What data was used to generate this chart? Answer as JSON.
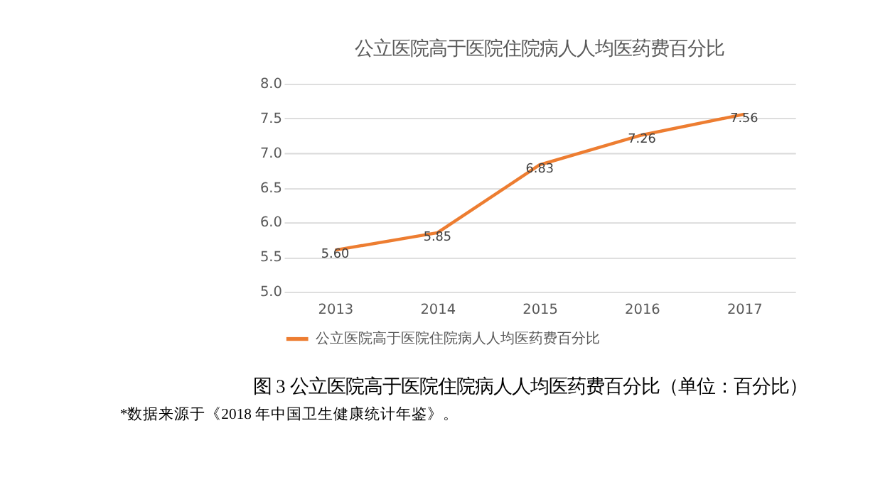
{
  "chart_data": {
    "type": "line",
    "title": "公立医院高于医院住院病人人均医药费百分比",
    "categories": [
      "2013",
      "2014",
      "2015",
      "2016",
      "2017"
    ],
    "series": [
      {
        "name": "公立医院高于医院住院病人人均医药费百分比",
        "color": "#ed7d31",
        "values": [
          5.6,
          5.85,
          6.83,
          7.26,
          7.56
        ]
      }
    ],
    "value_labels": [
      "5.60",
      "5.85",
      "6.83",
      "7.26",
      "7.56"
    ],
    "ylim": [
      5.0,
      8.0
    ],
    "yticks": [
      {
        "value": 5.0,
        "label": "5.0"
      },
      {
        "value": 5.5,
        "label": "5.5"
      },
      {
        "value": 6.0,
        "label": "6.0"
      },
      {
        "value": 6.5,
        "label": "6.5"
      },
      {
        "value": 7.0,
        "label": "7.0"
      },
      {
        "value": 7.5,
        "label": "7.5"
      },
      {
        "value": 8.0,
        "label": "8.0"
      }
    ],
    "grid": "y",
    "legend": "bottom",
    "marker": "none",
    "line_style": "solid",
    "annotations": [
      "图 3 公立医院高于医院住院病人人均医药费百分比（单位：百分比）",
      "*数据来源于《2018 年中国卫生健康统计年鉴》。"
    ]
  }
}
